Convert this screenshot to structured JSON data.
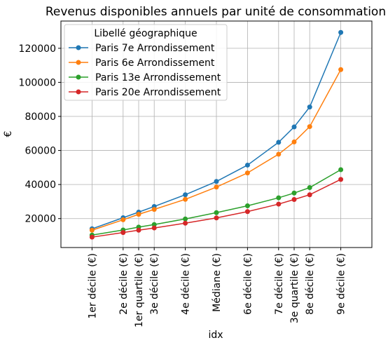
{
  "chart_data": {
    "type": "line",
    "title": "Revenus disponibles annuels par unité de consommation",
    "xlabel": "idx",
    "ylabel": "€",
    "categories": [
      "1er décile (€)",
      "2e décile (€)",
      "1er quartile (€)",
      "3e décile (€)",
      "4e décile (€)",
      "Médiane (€)",
      "6e décile (€)",
      "7e décile (€)",
      "3e quartile (€)",
      "8e décile (€)",
      "9e décile (€)"
    ],
    "x_positions": [
      1,
      2,
      2.5,
      3,
      4,
      5,
      6,
      7,
      7.5,
      8,
      9
    ],
    "xlim": [
      0,
      10
    ],
    "ylim": [
      3000,
      136000
    ],
    "yticks": [
      20000,
      40000,
      60000,
      80000,
      100000,
      120000
    ],
    "grid": true,
    "legend": {
      "title": "Libellé géographique",
      "placement": "top-left"
    },
    "series": [
      {
        "name": "Paris 7e Arrondissement",
        "color": "#1f77b4",
        "values": [
          14000,
          20500,
          23800,
          27100,
          34000,
          41800,
          51400,
          64800,
          73800,
          85500,
          129300
        ]
      },
      {
        "name": "Paris 6e Arrondissement",
        "color": "#ff7f0e",
        "values": [
          13200,
          19300,
          22500,
          25400,
          31300,
          38500,
          46800,
          57800,
          65000,
          74000,
          107500
        ]
      },
      {
        "name": "Paris 13e Arrondissement",
        "color": "#2ca02c",
        "values": [
          10300,
          13300,
          15000,
          16500,
          19800,
          23500,
          27500,
          32200,
          35000,
          38200,
          48700
        ]
      },
      {
        "name": "Paris 20e Arrondissement",
        "color": "#d62728",
        "values": [
          9100,
          11800,
          13200,
          14500,
          17300,
          20400,
          24100,
          28500,
          31200,
          34000,
          43000
        ]
      }
    ]
  }
}
